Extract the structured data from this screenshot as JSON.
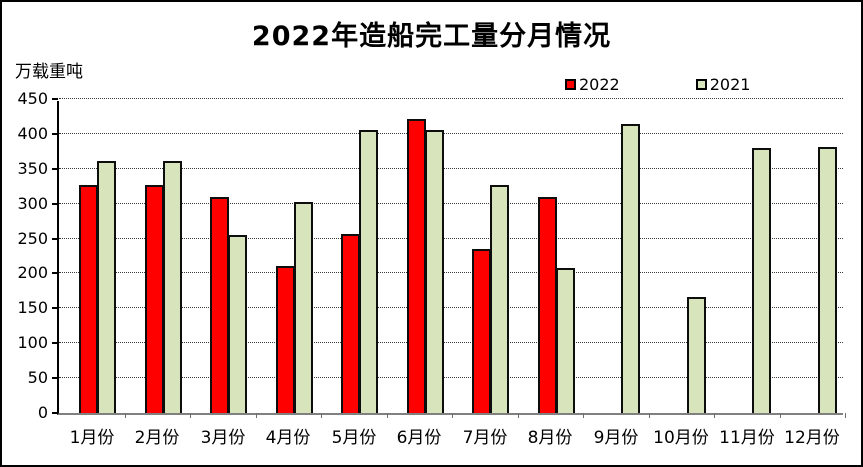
{
  "title": "2022年造船完工量分月情况",
  "unit_label": "万载重吨",
  "legend": [
    {
      "label": "2022",
      "color": "#FF0000"
    },
    {
      "label": "2021",
      "color": "#D8E4BC"
    }
  ],
  "chart_data": {
    "type": "bar",
    "title": "2022年造船完工量分月情况",
    "xlabel": "",
    "ylabel": "万载重吨",
    "categories": [
      "1月份",
      "2月份",
      "3月份",
      "4月份",
      "5月份",
      "6月份",
      "7月份",
      "8月份",
      "9月份",
      "10月份",
      "11月份",
      "12月份"
    ],
    "series": [
      {
        "name": "2022",
        "color": "#FF0000",
        "values": [
          327,
          327,
          309,
          210,
          256,
          422,
          235,
          309,
          null,
          null,
          null,
          null
        ]
      },
      {
        "name": "2021",
        "color": "#D8E4BC",
        "values": [
          361,
          361,
          255,
          302,
          405,
          405,
          327,
          208,
          414,
          166,
          380,
          381
        ]
      }
    ],
    "ylim": [
      0,
      450
    ],
    "ytick_step": 50,
    "yticks": [
      450,
      400,
      350,
      300,
      250,
      200,
      150,
      100,
      50,
      0
    ],
    "grid": true,
    "legend_position": "top-right",
    "bar_border_color": "#000000"
  }
}
